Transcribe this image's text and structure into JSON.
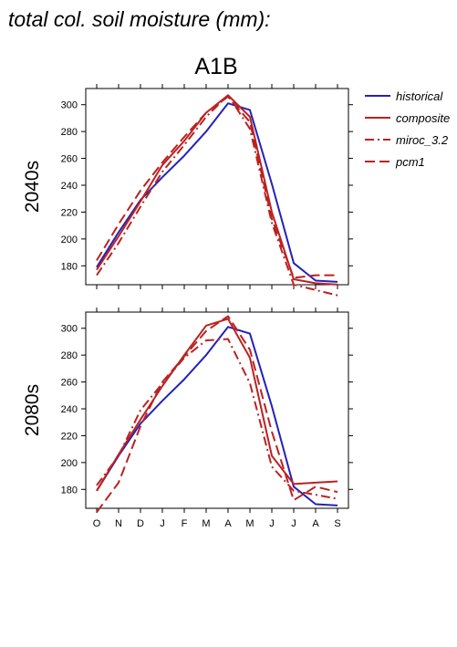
{
  "figure": {
    "title": "total col. soil moisture (mm):",
    "scenario": "A1B"
  },
  "colors": {
    "historical": "#2222bb",
    "projection": "#bb2222"
  },
  "chart_data": [
    {
      "type": "line",
      "row_label": "2040s",
      "categories": [
        "O",
        "N",
        "D",
        "J",
        "F",
        "M",
        "A",
        "M",
        "J",
        "J",
        "A",
        "S"
      ],
      "ylim": [
        170,
        310
      ],
      "yticks": [
        180,
        200,
        220,
        240,
        260,
        280,
        300
      ],
      "grid": false,
      "series": [
        {
          "name": "historical",
          "style": "solid",
          "values": [
            179,
            205,
            229,
            246,
            262,
            280,
            301,
            296,
            241,
            182,
            169,
            168
          ]
        },
        {
          "name": "composite",
          "style": "solid",
          "values": [
            177,
            202,
            228,
            255,
            273,
            294,
            307,
            291,
            220,
            170,
            167,
            166
          ]
        },
        {
          "name": "miroc_3.2",
          "style": "dashdot",
          "values": [
            173,
            197,
            224,
            250,
            270,
            291,
            307,
            282,
            212,
            166,
            162,
            158
          ]
        },
        {
          "name": "pcm1",
          "style": "dash",
          "values": [
            184,
            211,
            236,
            257,
            276,
            294,
            306,
            287,
            215,
            171,
            173,
            173
          ]
        }
      ]
    },
    {
      "type": "line",
      "row_label": "2080s",
      "categories": [
        "O",
        "N",
        "D",
        "J",
        "F",
        "M",
        "A",
        "M",
        "J",
        "J",
        "A",
        "S"
      ],
      "ylim": [
        170,
        310
      ],
      "yticks": [
        180,
        200,
        220,
        240,
        260,
        280,
        300
      ],
      "grid": false,
      "series": [
        {
          "name": "historical",
          "style": "solid",
          "values": [
            179,
            205,
            229,
            246,
            262,
            280,
            301,
            296,
            242,
            182,
            169,
            168
          ]
        },
        {
          "name": "composite",
          "style": "solid",
          "values": [
            179,
            206,
            232,
            257,
            280,
            302,
            307,
            278,
            205,
            184,
            185,
            186
          ]
        },
        {
          "name": "miroc_3.2",
          "style": "dashdot",
          "values": [
            183,
            205,
            239,
            259,
            278,
            291,
            292,
            259,
            197,
            179,
            176,
            173
          ]
        },
        {
          "name": "pcm1",
          "style": "dash",
          "values": [
            163,
            185,
            227,
            260,
            279,
            298,
            309,
            284,
            223,
            172,
            182,
            178
          ]
        }
      ]
    }
  ]
}
